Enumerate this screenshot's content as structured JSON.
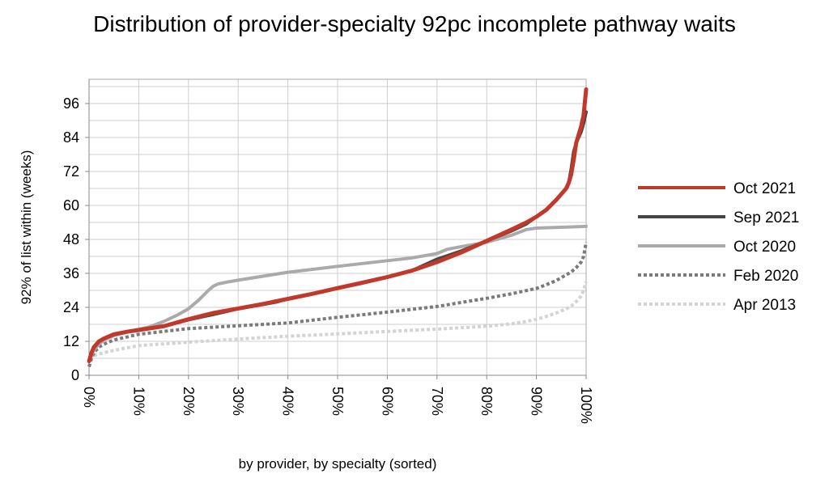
{
  "chart_data": {
    "type": "line",
    "title": "Distribution of provider-specialty 92pc incomplete pathway waits",
    "xlabel": "by provider, by specialty (sorted)",
    "ylabel": "92% of list within (weeks)",
    "xlim": [
      0,
      100
    ],
    "ylim": [
      0,
      102
    ],
    "yticks": [
      0,
      12,
      24,
      36,
      48,
      60,
      72,
      84,
      96
    ],
    "ytick_labels": [
      "0",
      "12",
      "24",
      "36",
      "48",
      "60",
      "72",
      "84",
      "96"
    ],
    "xticks": [
      0,
      10,
      20,
      30,
      40,
      50,
      60,
      70,
      80,
      90,
      100
    ],
    "xtick_labels": [
      "0%",
      "10%",
      "20%",
      "30%",
      "40%",
      "50%",
      "60%",
      "70%",
      "80%",
      "90%",
      "100%"
    ],
    "grid": true,
    "legend_position": "right",
    "series": [
      {
        "name": "Apr 2013",
        "color": "#d3d3d3",
        "dashed": true,
        "x": [
          0,
          0.5,
          1,
          2,
          3,
          5,
          10,
          20,
          30,
          40,
          50,
          60,
          70,
          80,
          85,
          88,
          90,
          92,
          94,
          96,
          97,
          98,
          99,
          99.5,
          100
        ],
        "y": [
          6,
          6.5,
          7,
          7.5,
          8,
          8.8,
          10.5,
          11.7,
          12.8,
          13.8,
          14.6,
          15.5,
          16.3,
          17.3,
          18.2,
          19,
          19.8,
          20.8,
          22,
          23.5,
          24.5,
          26,
          28,
          30,
          33
        ]
      },
      {
        "name": "Feb 2020",
        "color": "#7a7a7a",
        "dashed": true,
        "x": [
          0,
          0.5,
          1,
          2,
          3,
          5,
          10,
          20,
          30,
          40,
          50,
          60,
          70,
          80,
          85,
          90,
          92,
          94,
          96,
          97,
          98,
          99,
          99.5,
          100
        ],
        "y": [
          3,
          6,
          8,
          10,
          11,
          12.5,
          14.5,
          16.5,
          17.5,
          18.5,
          20.5,
          22.3,
          24.3,
          27.2,
          28.8,
          30.7,
          32,
          33.5,
          35.5,
          36.5,
          38,
          40,
          42,
          47
        ]
      },
      {
        "name": "Oct 2020",
        "color": "#aaaaaa",
        "dashed": false,
        "x": [
          0,
          0.5,
          1,
          2,
          3,
          5,
          8,
          12,
          15,
          18,
          20,
          22,
          24,
          25,
          26,
          28,
          30,
          35,
          40,
          50,
          60,
          65,
          70,
          72,
          75,
          80,
          85,
          88,
          90,
          95,
          100
        ],
        "y": [
          5,
          7,
          9,
          11,
          12.5,
          14,
          15.5,
          17,
          19,
          21.5,
          23.5,
          26.5,
          30,
          31.5,
          32.3,
          33,
          33.6,
          35,
          36.4,
          38.5,
          40.5,
          41.5,
          43,
          44.5,
          45.5,
          47,
          49.5,
          51.5,
          52,
          52.3,
          52.6
        ]
      },
      {
        "name": "Sep 2021",
        "color": "#454545",
        "dashed": false,
        "x": [
          0,
          0.5,
          1,
          2,
          3,
          5,
          8,
          10,
          15,
          20,
          25,
          30,
          35,
          38,
          40,
          45,
          50,
          55,
          60,
          65,
          70,
          75,
          80,
          85,
          88,
          90,
          92,
          94,
          95,
          96,
          96.5,
          97,
          97.5,
          98,
          98.5,
          99,
          99.5,
          100
        ],
        "y": [
          5,
          8,
          10,
          12,
          13,
          14.5,
          15.5,
          16,
          17.3,
          19.6,
          21.5,
          23.5,
          25,
          26,
          27,
          28.8,
          30.7,
          32.6,
          34.6,
          37,
          41,
          44,
          47.5,
          51,
          53.5,
          56,
          58.5,
          62,
          64,
          66,
          68,
          73,
          79,
          82,
          84,
          86,
          89,
          93
        ]
      },
      {
        "name": "Oct 2021",
        "color": "#c0392b",
        "dashed": false,
        "x": [
          0,
          0.5,
          1,
          2,
          3,
          5,
          8,
          10,
          15,
          20,
          25,
          30,
          35,
          40,
          45,
          50,
          55,
          60,
          65,
          70,
          75,
          80,
          85,
          88,
          90,
          92,
          94,
          95,
          96,
          96.5,
          97,
          97.5,
          98,
          98.5,
          99,
          99.5,
          100
        ],
        "y": [
          5,
          8,
          10,
          12,
          13,
          14.5,
          15.5,
          16,
          17.3,
          19.8,
          22,
          23.6,
          25.2,
          27,
          28.8,
          30.8,
          32.7,
          34.7,
          37,
          40,
          43.5,
          47.5,
          51.5,
          54,
          56,
          58.5,
          62,
          64,
          66,
          68,
          71,
          76,
          82,
          85,
          88,
          92,
          101
        ]
      }
    ],
    "legend_order": [
      "Oct 2021",
      "Sep 2021",
      "Oct 2020",
      "Feb 2020",
      "Apr 2013"
    ]
  }
}
